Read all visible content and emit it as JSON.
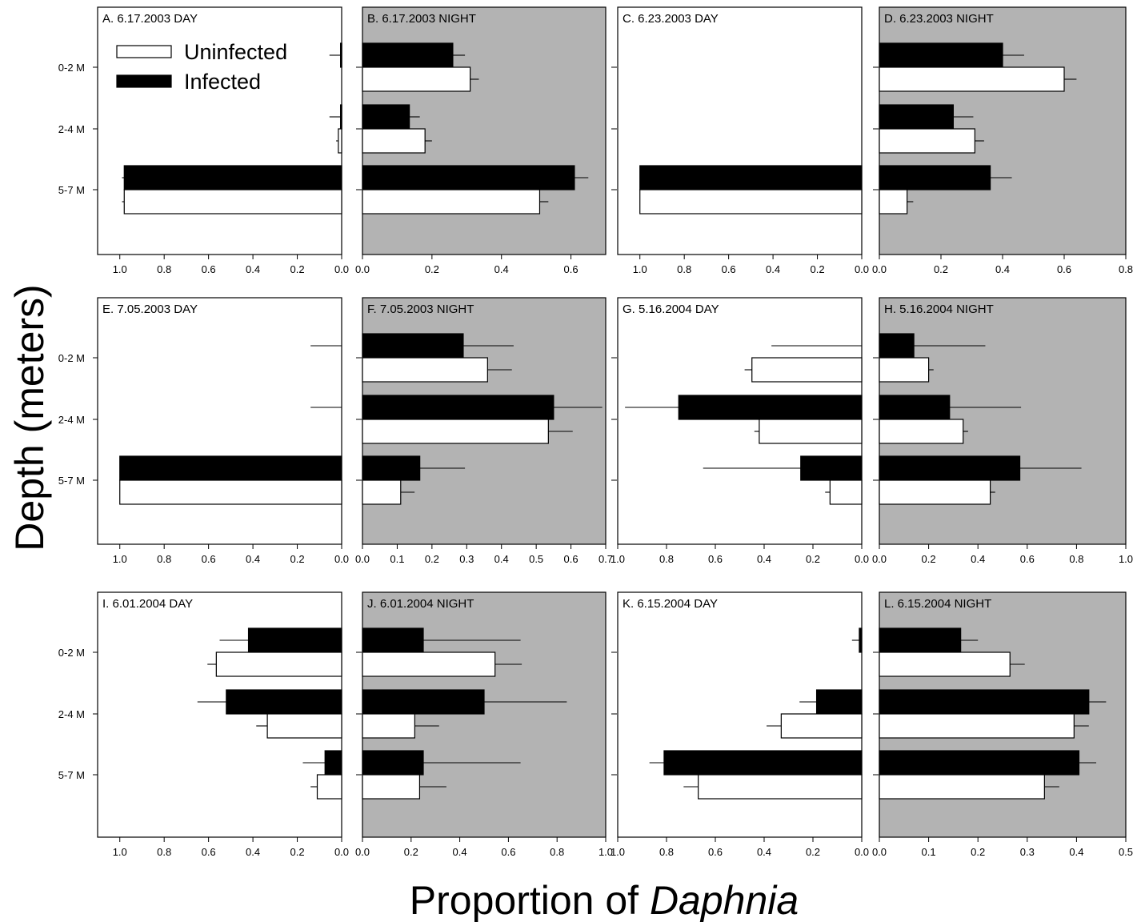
{
  "figure": {
    "ylabel": "Depth (meters)",
    "xlabel_prefix": "Proportion of ",
    "xlabel_italic": "Daphnia",
    "background_colors": {
      "day": "#ffffff",
      "night": "#b3b3b3"
    },
    "bar_colors": {
      "uninfected": "#ffffff",
      "infected": "#000000"
    }
  },
  "legend": {
    "uninfected": "Uninfected",
    "infected": "Infected"
  },
  "depth_labels": [
    "0-2 M",
    "2-4 M",
    "5-7 M"
  ],
  "chart_data": [
    {
      "type": "bar",
      "panel": "A",
      "title": "A. 6.17.2003 DAY",
      "time": "day",
      "direction": "reversed",
      "xlim": [
        0,
        1.1
      ],
      "ticks": [
        0,
        0.2,
        0.4,
        0.6,
        0.8,
        1.0
      ],
      "tick_labels": [
        "0.0",
        "0.2",
        "0.4",
        "0.6",
        "0.8",
        "1.0"
      ],
      "categories": [
        "0-2 M",
        "2-4 M",
        "5-7 M"
      ],
      "series": [
        {
          "name": "Infected",
          "values": [
            0.005,
            0.005,
            0.98
          ],
          "errors": [
            0.05,
            0.05,
            0.01
          ]
        },
        {
          "name": "Uninfected",
          "values": [
            0.0,
            0.015,
            0.98
          ],
          "errors": [
            0.0,
            0.01,
            0.01
          ]
        }
      ]
    },
    {
      "type": "bar",
      "panel": "B",
      "title": "B. 6.17.2003 NIGHT",
      "time": "night",
      "direction": "normal",
      "xlim": [
        0,
        0.7
      ],
      "ticks": [
        0,
        0.2,
        0.4,
        0.6
      ],
      "tick_labels": [
        "0.0",
        "0.2",
        "0.4",
        "0.6"
      ],
      "categories": [
        "0-2 M",
        "2-4 M",
        "5-7 M"
      ],
      "series": [
        {
          "name": "Infected",
          "values": [
            0.26,
            0.135,
            0.61
          ],
          "errors": [
            0.035,
            0.03,
            0.04
          ]
        },
        {
          "name": "Uninfected",
          "values": [
            0.31,
            0.18,
            0.51
          ],
          "errors": [
            0.025,
            0.02,
            0.025
          ]
        }
      ]
    },
    {
      "type": "bar",
      "panel": "C",
      "title": "C. 6.23.2003 DAY",
      "time": "day",
      "direction": "reversed",
      "xlim": [
        0,
        1.1
      ],
      "ticks": [
        0,
        0.2,
        0.4,
        0.6,
        0.8,
        1.0
      ],
      "tick_labels": [
        "0.0",
        "0.2",
        "0.4",
        "0.6",
        "0.8",
        "1.0"
      ],
      "categories": [
        "0-2 M",
        "2-4 M",
        "5-7 M"
      ],
      "series": [
        {
          "name": "Infected",
          "values": [
            0.0,
            0.0,
            1.0
          ],
          "errors": [
            0.0,
            0.0,
            0.0
          ]
        },
        {
          "name": "Uninfected",
          "values": [
            0.0,
            0.0,
            1.0
          ],
          "errors": [
            0.0,
            0.0,
            0.0
          ]
        }
      ]
    },
    {
      "type": "bar",
      "panel": "D",
      "title": "D. 6.23.2003 NIGHT",
      "time": "night",
      "direction": "normal",
      "xlim": [
        0,
        0.8
      ],
      "ticks": [
        0,
        0.2,
        0.4,
        0.6,
        0.8
      ],
      "tick_labels": [
        "0.0",
        "0.2",
        "0.4",
        "0.6",
        "0.8"
      ],
      "categories": [
        "0-2 M",
        "2-4 M",
        "5-7 M"
      ],
      "series": [
        {
          "name": "Infected",
          "values": [
            0.4,
            0.24,
            0.36
          ],
          "errors": [
            0.07,
            0.065,
            0.07
          ]
        },
        {
          "name": "Uninfected",
          "values": [
            0.6,
            0.31,
            0.09
          ],
          "errors": [
            0.04,
            0.03,
            0.02
          ]
        }
      ]
    },
    {
      "type": "bar",
      "panel": "E",
      "title": "E. 7.05.2003 DAY",
      "time": "day",
      "direction": "reversed",
      "xlim": [
        0,
        1.1
      ],
      "ticks": [
        0,
        0.2,
        0.4,
        0.6,
        0.8,
        1.0
      ],
      "tick_labels": [
        "0.0",
        "0.2",
        "0.4",
        "0.6",
        "0.8",
        "1.0"
      ],
      "categories": [
        "0-2 M",
        "2-4 M",
        "5-7 M"
      ],
      "series": [
        {
          "name": "Infected",
          "values": [
            0.0,
            0.0,
            1.0
          ],
          "errors": [
            0.14,
            0.14,
            0.0
          ]
        },
        {
          "name": "Uninfected",
          "values": [
            0.0,
            0.0,
            1.0
          ],
          "errors": [
            0.0,
            0.0,
            0.0
          ]
        }
      ]
    },
    {
      "type": "bar",
      "panel": "F",
      "title": "F. 7.05.2003 NIGHT",
      "time": "night",
      "direction": "normal",
      "xlim": [
        0,
        0.7
      ],
      "ticks": [
        0,
        0.1,
        0.2,
        0.3,
        0.4,
        0.5,
        0.6,
        0.7
      ],
      "tick_labels": [
        "0.0",
        "0.1",
        "0.2",
        "0.3",
        "0.4",
        "0.5",
        "0.6",
        "0.7"
      ],
      "categories": [
        "0-2 M",
        "2-4 M",
        "5-7 M"
      ],
      "series": [
        {
          "name": "Infected",
          "values": [
            0.29,
            0.55,
            0.165
          ],
          "errors": [
            0.145,
            0.14,
            0.13
          ]
        },
        {
          "name": "Uninfected",
          "values": [
            0.36,
            0.535,
            0.11
          ],
          "errors": [
            0.07,
            0.07,
            0.04
          ]
        }
      ]
    },
    {
      "type": "bar",
      "panel": "G",
      "title": "G. 5.16.2004 DAY",
      "time": "day",
      "direction": "reversed",
      "xlim": [
        0,
        1.0
      ],
      "ticks": [
        0,
        0.2,
        0.4,
        0.6,
        0.8,
        1.0
      ],
      "tick_labels": [
        "0.0",
        "0.2",
        "0.4",
        "0.6",
        "0.8",
        "1.0"
      ],
      "categories": [
        "0-2 M",
        "2-4 M",
        "5-7 M"
      ],
      "series": [
        {
          "name": "Infected",
          "values": [
            0.0,
            0.75,
            0.25
          ],
          "errors": [
            0.37,
            0.22,
            0.4
          ]
        },
        {
          "name": "Uninfected",
          "values": [
            0.45,
            0.42,
            0.13
          ],
          "errors": [
            0.03,
            0.02,
            0.02
          ]
        }
      ]
    },
    {
      "type": "bar",
      "panel": "H",
      "title": "H. 5.16.2004 NIGHT",
      "time": "night",
      "direction": "normal",
      "xlim": [
        0,
        1.0
      ],
      "ticks": [
        0,
        0.2,
        0.4,
        0.6,
        0.8,
        1.0
      ],
      "tick_labels": [
        "0.0",
        "0.2",
        "0.4",
        "0.6",
        "0.8",
        "1.0"
      ],
      "categories": [
        "0-2 M",
        "2-4 M",
        "5-7 M"
      ],
      "series": [
        {
          "name": "Infected",
          "values": [
            0.14,
            0.285,
            0.57
          ],
          "errors": [
            0.29,
            0.29,
            0.25
          ]
        },
        {
          "name": "Uninfected",
          "values": [
            0.2,
            0.34,
            0.45
          ],
          "errors": [
            0.02,
            0.02,
            0.02
          ]
        }
      ]
    },
    {
      "type": "bar",
      "panel": "I",
      "title": "I. 6.01.2004 DAY",
      "time": "day",
      "direction": "reversed",
      "xlim": [
        0,
        1.1
      ],
      "ticks": [
        0,
        0.2,
        0.4,
        0.6,
        0.8,
        1.0
      ],
      "tick_labels": [
        "0.0",
        "0.2",
        "0.4",
        "0.6",
        "0.8",
        "1.0"
      ],
      "categories": [
        "0-2 M",
        "2-4 M",
        "5-7 M"
      ],
      "series": [
        {
          "name": "Infected",
          "values": [
            0.42,
            0.52,
            0.075
          ],
          "errors": [
            0.13,
            0.13,
            0.1
          ]
        },
        {
          "name": "Uninfected",
          "values": [
            0.565,
            0.335,
            0.11
          ],
          "errors": [
            0.04,
            0.05,
            0.03
          ]
        }
      ]
    },
    {
      "type": "bar",
      "panel": "J",
      "title": "J. 6.01.2004 NIGHT",
      "time": "night",
      "direction": "normal",
      "xlim": [
        0,
        1.0
      ],
      "ticks": [
        0,
        0.2,
        0.4,
        0.6,
        0.8,
        1.0
      ],
      "tick_labels": [
        "0.0",
        "0.2",
        "0.4",
        "0.6",
        "0.8",
        "1.0"
      ],
      "categories": [
        "0-2 M",
        "2-4 M",
        "5-7 M"
      ],
      "series": [
        {
          "name": "Infected",
          "values": [
            0.25,
            0.5,
            0.25
          ],
          "errors": [
            0.4,
            0.34,
            0.4
          ]
        },
        {
          "name": "Uninfected",
          "values": [
            0.545,
            0.215,
            0.235
          ],
          "errors": [
            0.11,
            0.1,
            0.11
          ]
        }
      ]
    },
    {
      "type": "bar",
      "panel": "K",
      "title": "K. 6.15.2004 DAY",
      "time": "day",
      "direction": "reversed",
      "xlim": [
        0,
        1.0
      ],
      "ticks": [
        0,
        0.2,
        0.4,
        0.6,
        0.8,
        1.0
      ],
      "tick_labels": [
        "0.0",
        "0.2",
        "0.4",
        "0.6",
        "0.8",
        "1.0"
      ],
      "categories": [
        "0-2 M",
        "2-4 M",
        "5-7 M"
      ],
      "series": [
        {
          "name": "Infected",
          "values": [
            0.01,
            0.185,
            0.81
          ],
          "errors": [
            0.03,
            0.07,
            0.06
          ]
        },
        {
          "name": "Uninfected",
          "values": [
            0.0,
            0.33,
            0.67
          ],
          "errors": [
            0.0,
            0.06,
            0.06
          ]
        }
      ]
    },
    {
      "type": "bar",
      "panel": "L",
      "title": "L. 6.15.2004 NIGHT",
      "time": "night",
      "direction": "normal",
      "xlim": [
        0,
        0.5
      ],
      "ticks": [
        0,
        0.1,
        0.2,
        0.3,
        0.4,
        0.5
      ],
      "tick_labels": [
        "0.0",
        "0.1",
        "0.2",
        "0.3",
        "0.4",
        "0.5"
      ],
      "categories": [
        "0-2 M",
        "2-4 M",
        "5-7 M"
      ],
      "series": [
        {
          "name": "Infected",
          "values": [
            0.165,
            0.425,
            0.405
          ],
          "errors": [
            0.035,
            0.035,
            0.035
          ]
        },
        {
          "name": "Uninfected",
          "values": [
            0.265,
            0.395,
            0.335
          ],
          "errors": [
            0.03,
            0.03,
            0.03
          ]
        }
      ]
    }
  ]
}
